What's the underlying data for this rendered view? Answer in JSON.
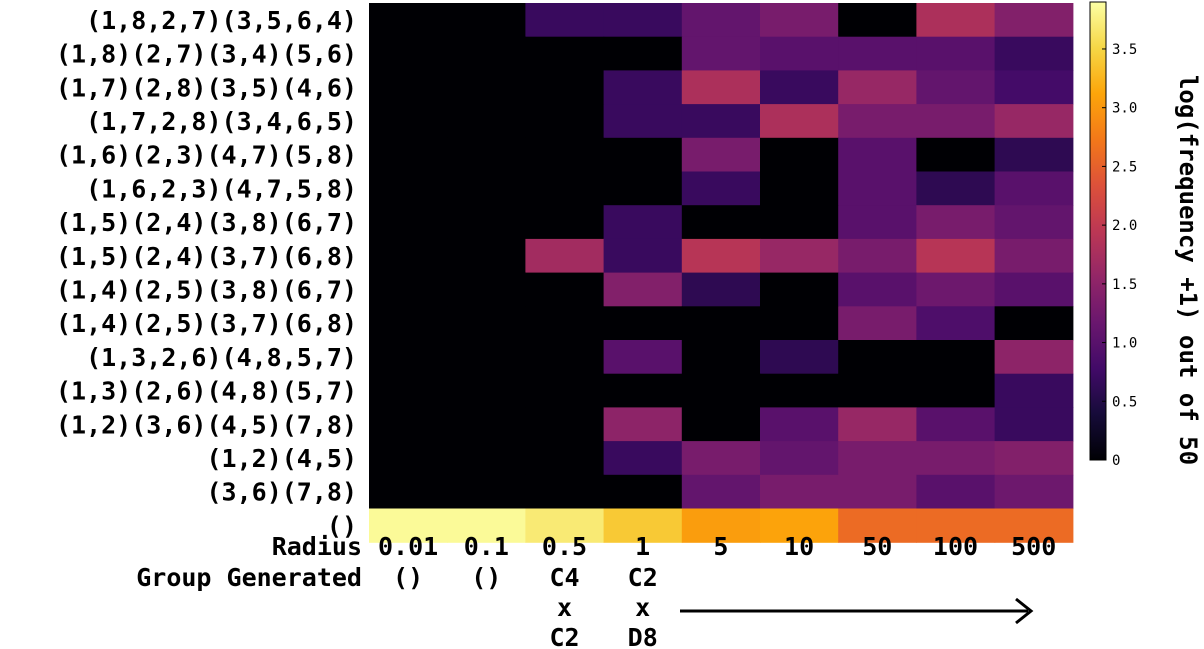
{
  "chart_data": {
    "type": "heatmap",
    "title": "",
    "ylabel": "",
    "x_row_labels": {
      "radius_label": "Radius",
      "group_label": "Group Generated"
    },
    "x_categories": [
      "0.01",
      "0.1",
      "0.5",
      "1",
      "5",
      "10",
      "50",
      "100",
      "500"
    ],
    "group_generated": [
      [
        "()"
      ],
      [
        "()"
      ],
      [
        "C4",
        "x",
        "C2"
      ],
      [
        "C2",
        "x",
        "D8"
      ]
    ],
    "y_categories": [
      "(1,8,2,7)(3,5,6,4)",
      "(1,8)(2,7)(3,4)(5,6)",
      "(1,7)(2,8)(3,5)(4,6)",
      "(1,7,2,8)(3,4,6,5)",
      "(1,6)(2,3)(4,7)(5,8)",
      "(1,6,2,3)(4,7,5,8)",
      "(1,5)(2,4)(3,8)(6,7)",
      "(1,5)(2,4)(3,7)(6,8)",
      "(1,4)(2,5)(3,8)(6,7)",
      "(1,4)(2,5)(3,7)(6,8)",
      "(1,3,2,6)(4,8,5,7)",
      "(1,3)(2,6)(4,8)(5,7)",
      "(1,2)(3,6)(4,5)(7,8)",
      "(1,2)(4,5)",
      "(3,6)(7,8)",
      "()"
    ],
    "values": [
      [
        0,
        0,
        0.7,
        0.7,
        1.1,
        1.3,
        0,
        1.8,
        1.4
      ],
      [
        0,
        0,
        0,
        0,
        1.1,
        1.0,
        1.0,
        1.0,
        0.7
      ],
      [
        0,
        0,
        0,
        0.7,
        1.8,
        0.7,
        1.6,
        1.1,
        0.8
      ],
      [
        0,
        0,
        0,
        0.7,
        0.7,
        1.8,
        1.3,
        1.3,
        1.6
      ],
      [
        0,
        0,
        0,
        0,
        1.3,
        0,
        1.0,
        0,
        0.6
      ],
      [
        0,
        0,
        0,
        0,
        0.7,
        0,
        1.0,
        0.6,
        1.0
      ],
      [
        0,
        0,
        0,
        0.7,
        0,
        0,
        1.0,
        1.3,
        1.1
      ],
      [
        0,
        0,
        1.7,
        0.7,
        1.9,
        1.6,
        1.3,
        1.9,
        1.3
      ],
      [
        0,
        0,
        0,
        1.4,
        0.6,
        0,
        1.0,
        1.2,
        1.0
      ],
      [
        0,
        0,
        0,
        0,
        0,
        0,
        1.3,
        0.9,
        0
      ],
      [
        0,
        0,
        0,
        1.0,
        0,
        0.6,
        0,
        0,
        1.5
      ],
      [
        0,
        0,
        0,
        0,
        0,
        0,
        0,
        0,
        0.7
      ],
      [
        0,
        0,
        0,
        1.5,
        0,
        1.0,
        1.6,
        1.0,
        0.7
      ],
      [
        0,
        0,
        0,
        0.7,
        1.3,
        1.1,
        1.3,
        1.3,
        1.4
      ],
      [
        0,
        0,
        0,
        0,
        1.1,
        1.3,
        1.3,
        1.0,
        1.2
      ],
      [
        3.85,
        3.85,
        3.7,
        3.4,
        3.05,
        3.1,
        2.6,
        2.6,
        2.6
      ]
    ],
    "colorbar": {
      "label": "log(frequency +1) out of 50",
      "colormap": "inferno",
      "range": [
        0,
        3.9
      ],
      "ticks": [
        0,
        0.5,
        1.0,
        1.5,
        2.0,
        2.5,
        3.0,
        3.5
      ],
      "tick_labels": [
        "0",
        "0.5",
        "1.0",
        "1.5",
        "2.0",
        "2.5",
        "3.0",
        "3.5"
      ]
    }
  }
}
